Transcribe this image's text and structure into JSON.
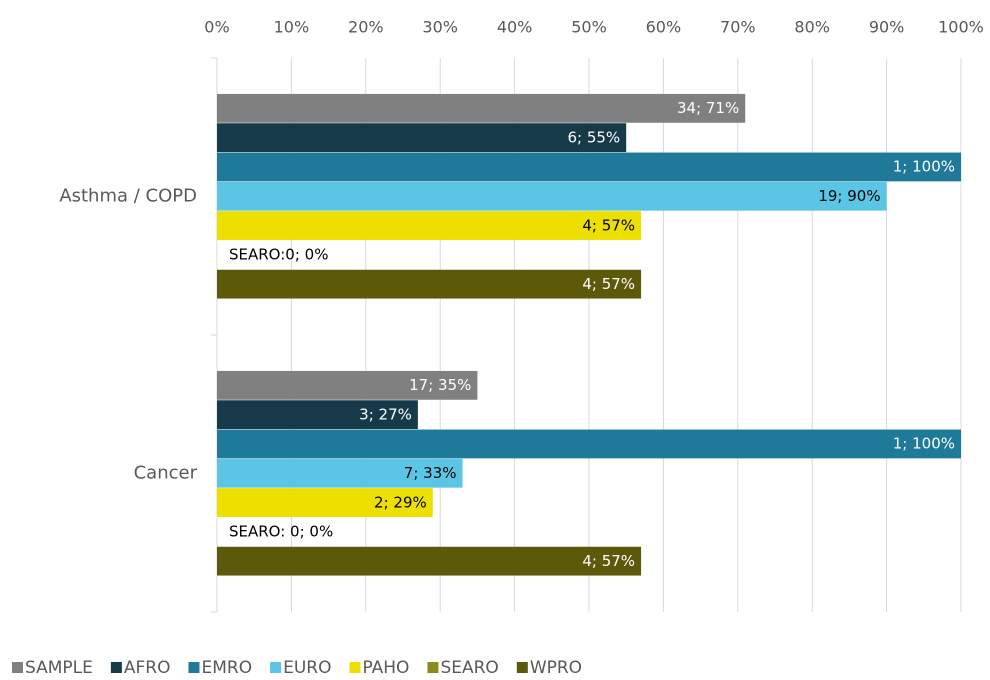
{
  "chart_data": {
    "type": "hbar",
    "categories": [
      "Asthma / COPD",
      "Cancer"
    ],
    "series": [
      {
        "name": "SAMPLE",
        "color": "#808080",
        "values": [
          71,
          35
        ],
        "value_labels": [
          "34; 71%",
          "17; 35%"
        ]
      },
      {
        "name": "AFRO",
        "color": "#163a4a",
        "values": [
          55,
          27
        ],
        "value_labels": [
          "6; 55%",
          "3; 27%"
        ]
      },
      {
        "name": "EMRO",
        "color": "#1f7a99",
        "values": [
          100,
          100
        ],
        "value_labels": [
          "1; 100%",
          "1; 100%"
        ]
      },
      {
        "name": "EURO",
        "color": "#5bc5e6",
        "values": [
          90,
          33
        ],
        "value_labels": [
          "19; 90%",
          "7; 33%"
        ]
      },
      {
        "name": "PAHO",
        "color": "#ede000",
        "values": [
          57,
          29
        ],
        "value_labels": [
          "4; 57%",
          "2; 29%"
        ]
      },
      {
        "name": "SEARO",
        "color": "#8c8c1e",
        "values": [
          0,
          0
        ],
        "value_labels": [
          "SEARO:0; 0%",
          "SEARO: 0; 0%"
        ]
      },
      {
        "name": "WPRO",
        "color": "#5c5a0a",
        "values": [
          57,
          57
        ],
        "value_labels": [
          "4; 57%",
          "4; 57%"
        ]
      }
    ],
    "xlim": [
      0,
      100
    ],
    "xticks": [
      {
        "value": 0,
        "label": "0%"
      },
      {
        "value": 10,
        "label": "10%"
      },
      {
        "value": 20,
        "label": "20%"
      },
      {
        "value": 30,
        "label": "30%"
      },
      {
        "value": 40,
        "label": "40%"
      },
      {
        "value": 50,
        "label": "50%"
      },
      {
        "value": 60,
        "label": "60%"
      },
      {
        "value": 70,
        "label": "70%"
      },
      {
        "value": 80,
        "label": "80%"
      },
      {
        "value": 90,
        "label": "90%"
      },
      {
        "value": 100,
        "label": "100%"
      }
    ],
    "grid": true,
    "legend": "bottom"
  }
}
